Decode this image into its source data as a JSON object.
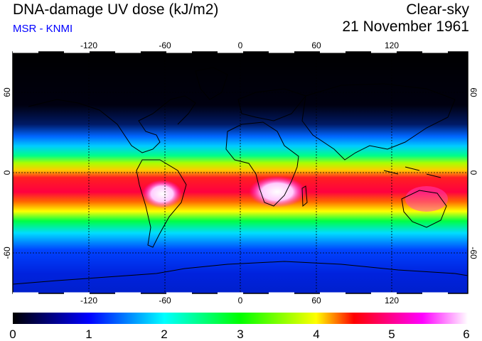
{
  "header": {
    "title": "DNA-damage UV dose (kJ/m2)",
    "source": "MSR - KNMI",
    "condition": "Clear-sky",
    "date": "21 November 1961"
  },
  "map": {
    "projection": "equirectangular",
    "lon_range": [
      -180,
      180
    ],
    "lat_range": [
      -90,
      90
    ],
    "lon_ticks": [
      "-120",
      "-60",
      "0",
      "60",
      "120"
    ],
    "lat_ticks": [
      "60",
      "0",
      "-60"
    ],
    "gridlines": "dashed",
    "coastlines": true
  },
  "colorbar": {
    "min": 0,
    "max": 6,
    "tick_labels": [
      "0",
      "1",
      "2",
      "3",
      "4",
      "5",
      "6"
    ],
    "colors": [
      "#000000",
      "#0000ff",
      "#00ffff",
      "#00ff00",
      "#ffff00",
      "#ff0000",
      "#ff00ff",
      "#ffffff"
    ]
  }
}
